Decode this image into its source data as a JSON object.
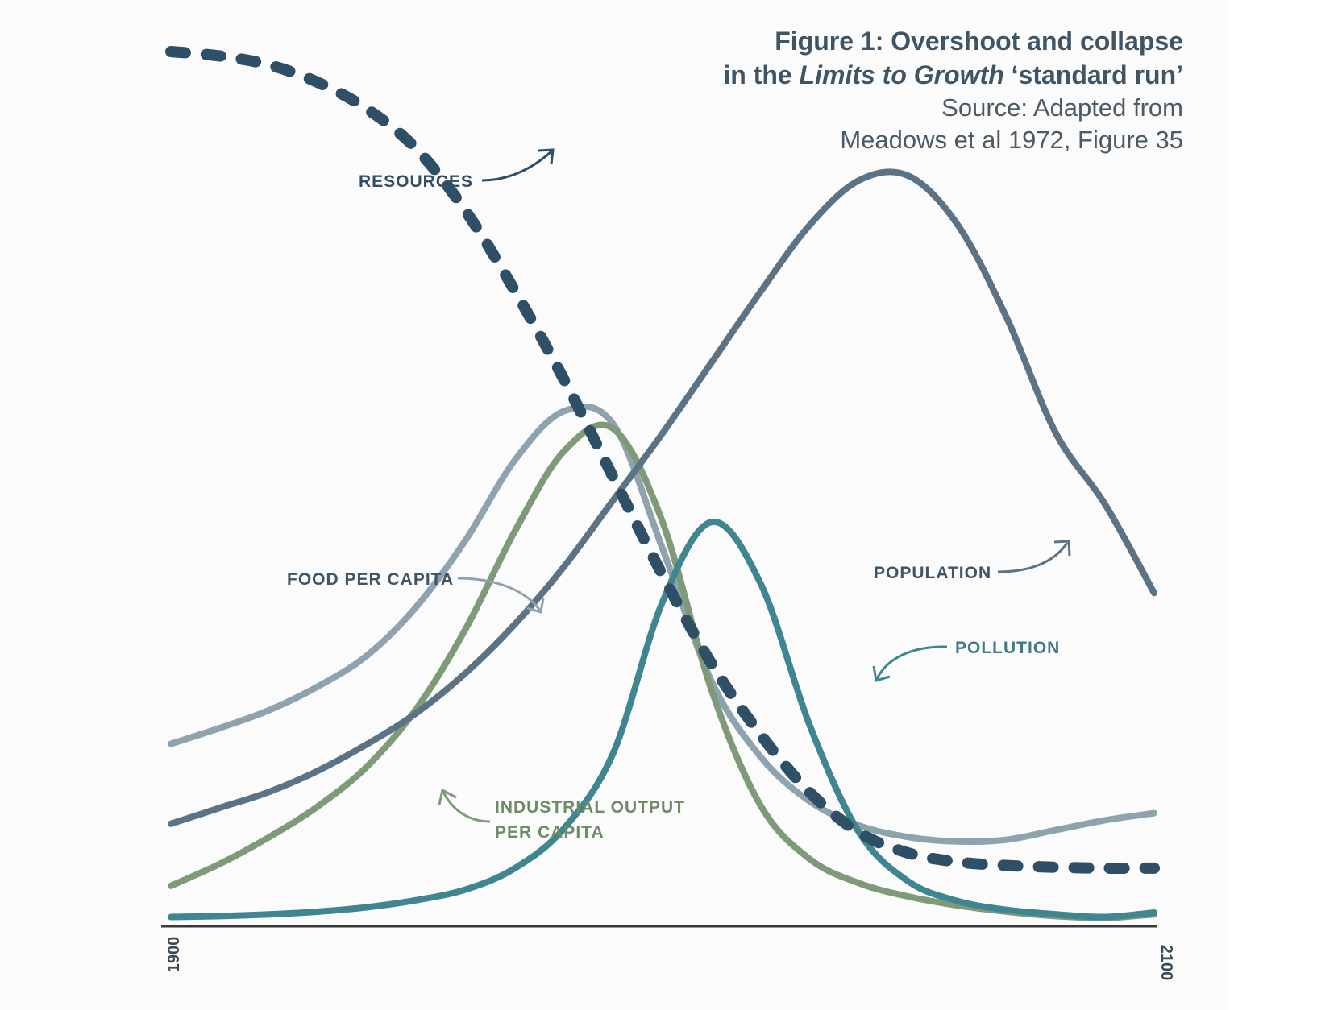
{
  "title": {
    "line1": "Figure 1: Overshoot and collapse",
    "line2_prefix": "in the ",
    "line2_italic": "Limits to Growth",
    "line2_suffix": " ‘standard run’",
    "source1": "Source: Adapted from",
    "source2": "Meadows  et al 1972, Figure 35"
  },
  "colors": {
    "resources": "#2f4f66",
    "population": "#5b7385",
    "food": "#8fa3ae",
    "industrial": "#7f9a78",
    "pollution": "#3f8690",
    "axis": "#3a3a3a"
  },
  "chart_data": {
    "type": "line",
    "title": "Overshoot and collapse in the Limits to Growth ‘standard run’",
    "xlabel": "",
    "ylabel": "",
    "xlim": [
      1900,
      2100
    ],
    "ylim": [
      0,
      100
    ],
    "x_ticks": [
      "1900",
      "2100"
    ],
    "grid": false,
    "legend": "inline labels with arrows",
    "series": [
      {
        "key": "resources",
        "name": "RESOURCES",
        "style": "dashed",
        "x": [
          1900,
          1910,
          1920,
          1930,
          1940,
          1950,
          1960,
          1970,
          1980,
          1990,
          2000,
          2010,
          2020,
          2030,
          2040,
          2050,
          2060,
          2070,
          2080,
          2090,
          2100
        ],
        "y": [
          98,
          97.5,
          96.5,
          94.5,
          91.5,
          87,
          80,
          71,
          61,
          50,
          39,
          29,
          21,
          14.5,
          10,
          7.7,
          6.7,
          6.3,
          6.1,
          6.0,
          6.0
        ]
      },
      {
        "key": "population",
        "name": "POPULATION",
        "style": "solid",
        "x": [
          1900,
          1910,
          1920,
          1930,
          1940,
          1950,
          1960,
          1970,
          1980,
          1990,
          2000,
          2010,
          2020,
          2030,
          2040,
          2050,
          2060,
          2070,
          2080,
          2090,
          2100
        ],
        "y": [
          11,
          12.8,
          14.6,
          17,
          20,
          23.5,
          28,
          33.5,
          40,
          47.5,
          55,
          63,
          71,
          78.5,
          83.5,
          84,
          78.5,
          68,
          55,
          47,
          37
        ]
      },
      {
        "key": "food",
        "name": "FOOD PER CAPITA",
        "style": "solid",
        "x": [
          1900,
          1910,
          1920,
          1930,
          1940,
          1950,
          1960,
          1970,
          1980,
          1990,
          2000,
          2010,
          2020,
          2030,
          2040,
          2050,
          2060,
          2070,
          2080,
          2090,
          2100
        ],
        "y": [
          20,
          21.8,
          23.8,
          26.5,
          30,
          35.5,
          43,
          52,
          57.5,
          56,
          42,
          27,
          18.5,
          13.5,
          10.8,
          9.5,
          9.0,
          9.2,
          10.3,
          11.4,
          12.2
        ]
      },
      {
        "key": "industrial",
        "name": "INDUSTRIAL OUTPUT PER CAPITA",
        "style": "solid",
        "x": [
          1900,
          1910,
          1920,
          1930,
          1940,
          1950,
          1960,
          1970,
          1980,
          1990,
          2000,
          2010,
          2020,
          2030,
          2040,
          2050,
          2060,
          2070,
          2080,
          2090,
          2100
        ],
        "y": [
          4,
          6.5,
          9.5,
          13,
          17.5,
          24,
          33,
          44,
          53,
          55.5,
          45,
          26,
          13,
          7,
          4.3,
          2.8,
          1.8,
          1.1,
          0.6,
          0.4,
          0.8
        ]
      },
      {
        "key": "pollution",
        "name": "POLLUTION",
        "style": "solid",
        "x": [
          1900,
          1910,
          1920,
          1930,
          1940,
          1950,
          1960,
          1970,
          1980,
          1990,
          2000,
          2010,
          2020,
          2030,
          2040,
          2050,
          2060,
          2070,
          2080,
          2090,
          2100
        ],
        "y": [
          0.5,
          0.6,
          0.8,
          1.1,
          1.6,
          2.4,
          3.6,
          6,
          10.5,
          19,
          36,
          45,
          38,
          22,
          10,
          4.5,
          2.3,
          1.3,
          0.8,
          0.5,
          1.0
        ]
      }
    ]
  }
}
